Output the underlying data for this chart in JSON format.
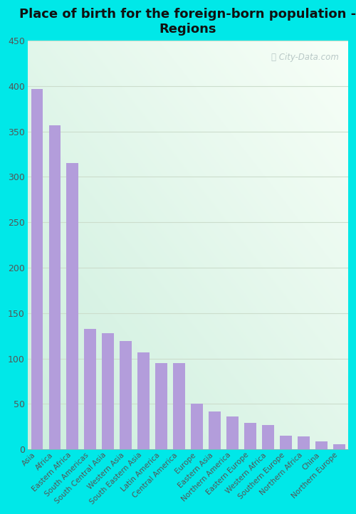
{
  "title": "Place of birth for the foreign-born population -\nRegions",
  "categories": [
    "Asia",
    "Africa",
    "Eastern Africa",
    "South Americas",
    "South Central Asia",
    "Western Asia",
    "South Eastern Asia",
    "Latin America",
    "Central America",
    "Europe",
    "Eastern Asia",
    "Northern America",
    "Eastern Europe",
    "Western Africa",
    "Southern Europe",
    "Northern Africa",
    "China",
    "Northern Europe"
  ],
  "values": [
    397,
    357,
    315,
    133,
    128,
    119,
    107,
    95,
    95,
    50,
    42,
    36,
    29,
    27,
    15,
    14,
    9,
    6
  ],
  "bar_color": "#b39ddb",
  "outer_bg_color": "#00e8e8",
  "title_fontsize": 13,
  "ylim": [
    0,
    450
  ],
  "yticks": [
    0,
    50,
    100,
    150,
    200,
    250,
    300,
    350,
    400,
    450
  ],
  "watermark": "City-Data.com",
  "grid_color": "#ccddcc",
  "tick_color": "#555555",
  "title_color": "#111111"
}
